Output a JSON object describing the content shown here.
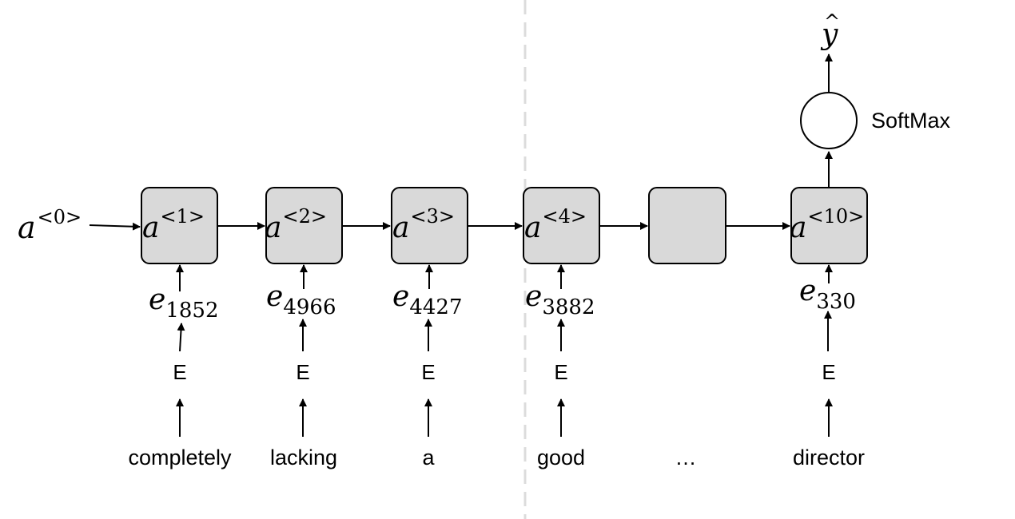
{
  "initial_state": {
    "base": "a",
    "sup": "<0>"
  },
  "cells": [
    {
      "base": "a",
      "sup": "<1>"
    },
    {
      "base": "a",
      "sup": "<2>"
    },
    {
      "base": "a",
      "sup": "<3>"
    },
    {
      "base": "a",
      "sup": "<4>"
    },
    {
      "base": "",
      "sup": ""
    },
    {
      "base": "a",
      "sup": "<10>"
    }
  ],
  "embeddings": [
    {
      "base": "e",
      "sub": "1852"
    },
    {
      "base": "e",
      "sub": "4966"
    },
    {
      "base": "e",
      "sub": "4427"
    },
    {
      "base": "e",
      "sub": "3882"
    },
    null,
    {
      "base": "e",
      "sub": "330"
    }
  ],
  "embedding_matrix_label": "E",
  "words": [
    "completely",
    "lacking",
    "a",
    "good",
    "…",
    "director"
  ],
  "softmax_label": "SoftMax",
  "output": {
    "base": "y",
    "hat": "^"
  }
}
